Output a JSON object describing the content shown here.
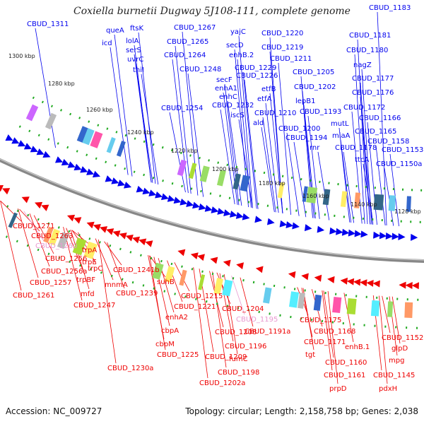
{
  "title": "Coxiella burnetii Dugway 5J108-111, complete genome",
  "footer": {
    "accession": "Accession: NC_009727",
    "stats": "Topology: circular; Length: 2,158,758 bp; Genes: 2,038"
  },
  "colors": {
    "forward": "#0000ee",
    "reverse": "#ee0000",
    "pseudo": "#e899d0",
    "backbone": "#888888",
    "tick": "#22aa22"
  },
  "scale_labels": [
    "1300 kbp",
    "1280 kbp",
    "1260 kbp",
    "1240 kbp",
    "1220 kbp",
    "1200 kbp",
    "1180 kbp",
    "1160 kbp",
    "1140 kbp",
    "1120 kbp"
  ],
  "top_labels": [
    "CBUD_1311",
    "queA",
    "ftsK",
    "icd",
    "lolA",
    "serS",
    "uvrC",
    "thiI",
    "CBUD_1267",
    "CBUD_1265",
    "CBUD_1264",
    "CBUD_1248",
    "CBUD_1254",
    "yajC",
    "secD",
    "enhB.2",
    "CBUD_1229",
    "CBUD_1226",
    "secF",
    "enhA1",
    "enhC",
    "CBUD_1232",
    "iscS",
    "CBUD_1220",
    "CBUD_1219",
    "CBUD_1211",
    "etfB",
    "etfA",
    "CBUD_1210",
    "ald",
    "CBUD_1205",
    "CBUD_1202",
    "lepB1",
    "CBUD_1193",
    "CBUD_1200",
    "CBUD_1194",
    "rnr",
    "CBUD_1183",
    "CBUD_1181",
    "CBUD_1180",
    "nagZ",
    "CBUD_1177",
    "CBUD_1176",
    "CBUD_1172",
    "CBUD_1166",
    "mutL",
    "miaA",
    "CBUD_1165",
    "CBUD_1178",
    "CBUD_1158",
    "CBUD_1153",
    "ttcA",
    "CBUD_1150a"
  ],
  "bottom_labels": [
    "CBUD_1271",
    "CBUD_1263",
    "CBUD_1260",
    "CBUD_1256",
    "trpA",
    "trpE",
    "CBUD_1256a",
    "trpC",
    "CBUD_1241b",
    "CBUD_1257",
    "trpBF",
    "mnmA",
    "CBUD_1261",
    "mfd",
    "CBUD_1247",
    "CBUD_1239",
    "suhB",
    "CBUD_1215",
    "CBUD_1221",
    "enhA2",
    "cbpA",
    "cbpM",
    "CBUD_1225",
    "CBUD_1230a",
    "CBUD_1204",
    "CBUD_1195",
    "CBUD_1191a",
    "CBUD_1208",
    "CBUD_1196",
    "CBUD_1209",
    "fumC",
    "CBUD_1198",
    "CBUD_1202a",
    "CBUD_1175",
    "CBUD_1168",
    "CBUD_1171",
    "tgt",
    "enhB.1",
    "CBUD_1160",
    "CBUD_1161",
    "prpD",
    "CBUD_1152",
    "glpD",
    "mpg",
    "CBUD_1145",
    "pdxH"
  ],
  "pseudo_labels": [
    "CBUD_1260",
    "CBUD_1195"
  ]
}
